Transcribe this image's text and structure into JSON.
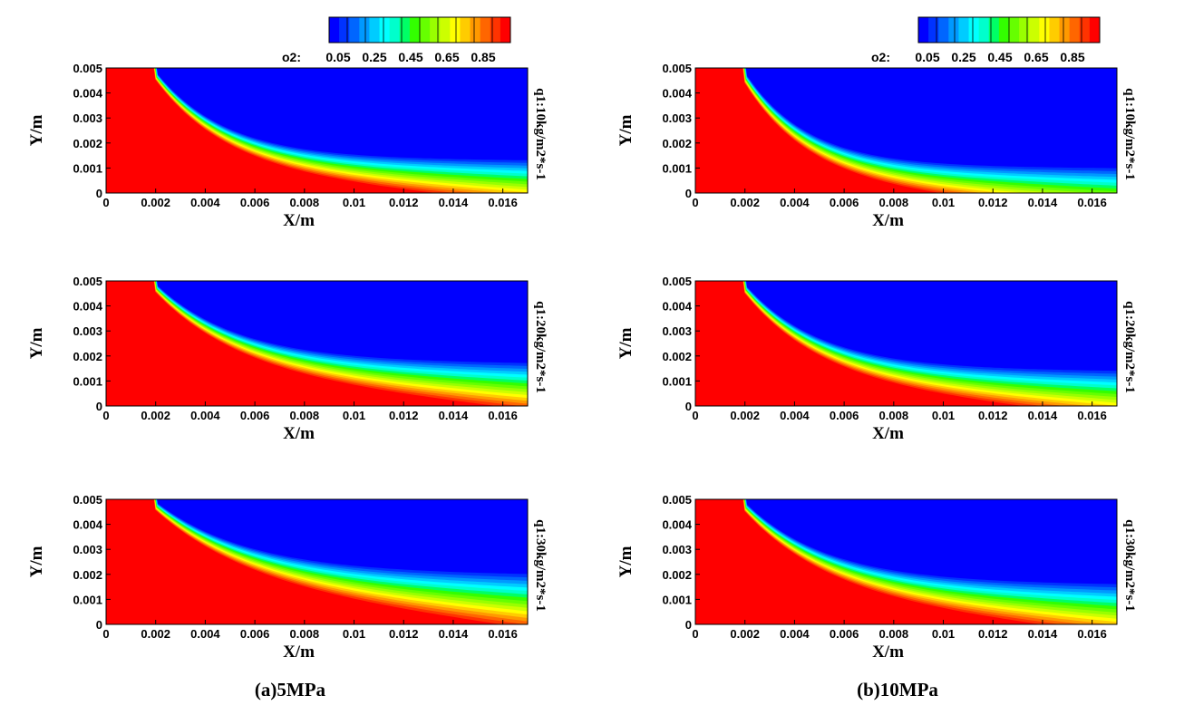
{
  "figure": {
    "colorbar": {
      "label": "o2:",
      "tick_labels": [
        "0.05",
        "0.25",
        "0.45",
        "0.65",
        "0.85"
      ],
      "colors": [
        "#0000ff",
        "#0033ff",
        "#0066ff",
        "#0099ff",
        "#00ccff",
        "#00ffff",
        "#00ffcc",
        "#00ff66",
        "#33ff00",
        "#66ff00",
        "#99ff00",
        "#ccff00",
        "#ffff00",
        "#ffcc00",
        "#ff9900",
        "#ff6600",
        "#ff3300",
        "#ff0000"
      ]
    },
    "captions": [
      "(a)5MPa",
      "(b)10MPa"
    ],
    "case_labels": [
      "q1:10kg/m2*s-1",
      "q1:20kg/m2*s-1",
      "q1:30kg/m2*s-1"
    ],
    "x_label": "X/m",
    "y_label": "Y/m"
  },
  "chart_data": [
    {
      "type": "heatmap",
      "variable": "o2",
      "pressure": "5MPa",
      "case": "q1:10kg/m2*s-1",
      "xlabel": "X/m",
      "ylabel": "Y/m",
      "xlim": [
        0,
        0.017
      ],
      "ylim": [
        0,
        0.005
      ],
      "xticks": [
        "0",
        "0.002",
        "0.004",
        "0.006",
        "0.008",
        "0.01",
        "0.012",
        "0.014",
        "0.016"
      ],
      "yticks": [
        "0",
        "0.001",
        "0.002",
        "0.003",
        "0.004",
        "0.005"
      ],
      "front": {
        "x0": 0.0019,
        "h_end": 0.0014,
        "decay": 0.0028,
        "spread_start": 0.00018,
        "spread_end": 0.0011
      },
      "colorbar_range": [
        0,
        1
      ]
    },
    {
      "type": "heatmap",
      "variable": "o2",
      "pressure": "5MPa",
      "case": "q1:20kg/m2*s-1",
      "xlabel": "X/m",
      "ylabel": "Y/m",
      "xlim": [
        0,
        0.017
      ],
      "ylim": [
        0,
        0.005
      ],
      "xticks": [
        "0",
        "0.002",
        "0.004",
        "0.006",
        "0.008",
        "0.01",
        "0.012",
        "0.014",
        "0.016"
      ],
      "yticks": [
        "0",
        "0.001",
        "0.002",
        "0.003",
        "0.004",
        "0.005"
      ],
      "front": {
        "x0": 0.0019,
        "h_end": 0.0018,
        "decay": 0.0033,
        "spread_start": 0.00018,
        "spread_end": 0.0012
      },
      "colorbar_range": [
        0,
        1
      ]
    },
    {
      "type": "heatmap",
      "variable": "o2",
      "pressure": "5MPa",
      "case": "q1:30kg/m2*s-1",
      "xlabel": "X/m",
      "ylabel": "Y/m",
      "xlim": [
        0,
        0.017
      ],
      "ylim": [
        0,
        0.005
      ],
      "xticks": [
        "0",
        "0.002",
        "0.004",
        "0.006",
        "0.008",
        "0.01",
        "0.012",
        "0.014",
        "0.016"
      ],
      "yticks": [
        "0",
        "0.001",
        "0.002",
        "0.003",
        "0.004",
        "0.005"
      ],
      "front": {
        "x0": 0.0019,
        "h_end": 0.0021,
        "decay": 0.0037,
        "spread_start": 0.00018,
        "spread_end": 0.0014
      },
      "colorbar_range": [
        0,
        1
      ]
    },
    {
      "type": "heatmap",
      "variable": "o2",
      "pressure": "10MPa",
      "case": "q1:10kg/m2*s-1",
      "xlabel": "X/m",
      "ylabel": "Y/m",
      "xlim": [
        0,
        0.017
      ],
      "ylim": [
        0,
        0.005
      ],
      "xticks": [
        "0",
        "0.002",
        "0.004",
        "0.006",
        "0.008",
        "0.01",
        "0.012",
        "0.014",
        "0.016"
      ],
      "yticks": [
        "0",
        "0.001",
        "0.002",
        "0.003",
        "0.004",
        "0.005"
      ],
      "front": {
        "x0": 0.0019,
        "h_end": 0.0011,
        "decay": 0.0025,
        "spread_start": 0.00025,
        "spread_end": 0.0012
      },
      "colorbar_range": [
        0,
        1
      ]
    },
    {
      "type": "heatmap",
      "variable": "o2",
      "pressure": "10MPa",
      "case": "q1:20kg/m2*s-1",
      "xlabel": "X/m",
      "ylabel": "Y/m",
      "xlim": [
        0,
        0.017
      ],
      "ylim": [
        0,
        0.005
      ],
      "xticks": [
        "0",
        "0.002",
        "0.004",
        "0.006",
        "0.008",
        "0.01",
        "0.012",
        "0.014",
        "0.016"
      ],
      "yticks": [
        "0",
        "0.001",
        "0.002",
        "0.003",
        "0.004",
        "0.005"
      ],
      "front": {
        "x0": 0.0019,
        "h_end": 0.0015,
        "decay": 0.003,
        "spread_start": 0.0002,
        "spread_end": 0.0012
      },
      "colorbar_range": [
        0,
        1
      ]
    },
    {
      "type": "heatmap",
      "variable": "o2",
      "pressure": "10MPa",
      "case": "q1:30kg/m2*s-1",
      "xlabel": "X/m",
      "ylabel": "Y/m",
      "xlim": [
        0,
        0.017
      ],
      "ylim": [
        0,
        0.005
      ],
      "xticks": [
        "0",
        "0.002",
        "0.004",
        "0.006",
        "0.008",
        "0.01",
        "0.012",
        "0.014",
        "0.016"
      ],
      "yticks": [
        "0",
        "0.001",
        "0.002",
        "0.003",
        "0.004",
        "0.005"
      ],
      "front": {
        "x0": 0.0019,
        "h_end": 0.0017,
        "decay": 0.0033,
        "spread_start": 0.0002,
        "spread_end": 0.0013
      },
      "colorbar_range": [
        0,
        1
      ]
    }
  ]
}
